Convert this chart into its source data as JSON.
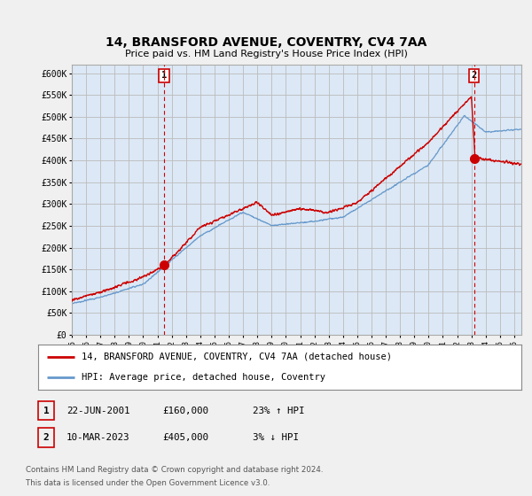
{
  "title": "14, BRANSFORD AVENUE, COVENTRY, CV4 7AA",
  "subtitle": "Price paid vs. HM Land Registry's House Price Index (HPI)",
  "ylim": [
    0,
    620000
  ],
  "xlim_start": 1995.0,
  "xlim_end": 2026.5,
  "sale1_year": 2001.47,
  "sale1_price": 160000,
  "sale2_year": 2023.19,
  "sale2_price": 405000,
  "legend_line1": "14, BRANSFORD AVENUE, COVENTRY, CV4 7AA (detached house)",
  "legend_line2": "HPI: Average price, detached house, Coventry",
  "footer1": "Contains HM Land Registry data © Crown copyright and database right 2024.",
  "footer2": "This data is licensed under the Open Government Licence v3.0.",
  "bg_color": "#f0f0f0",
  "plot_bg_color": "#dce8f5",
  "grid_color": "#bbbbbb",
  "red_color": "#cc0000",
  "blue_color": "#6699cc",
  "ytick_vals": [
    0,
    50000,
    100000,
    150000,
    200000,
    250000,
    300000,
    350000,
    400000,
    450000,
    500000,
    550000,
    600000
  ],
  "ytick_labels": [
    "£0",
    "£50K",
    "£100K",
    "£150K",
    "£200K",
    "£250K",
    "£300K",
    "£350K",
    "£400K",
    "£450K",
    "£500K",
    "£550K",
    "£600K"
  ]
}
